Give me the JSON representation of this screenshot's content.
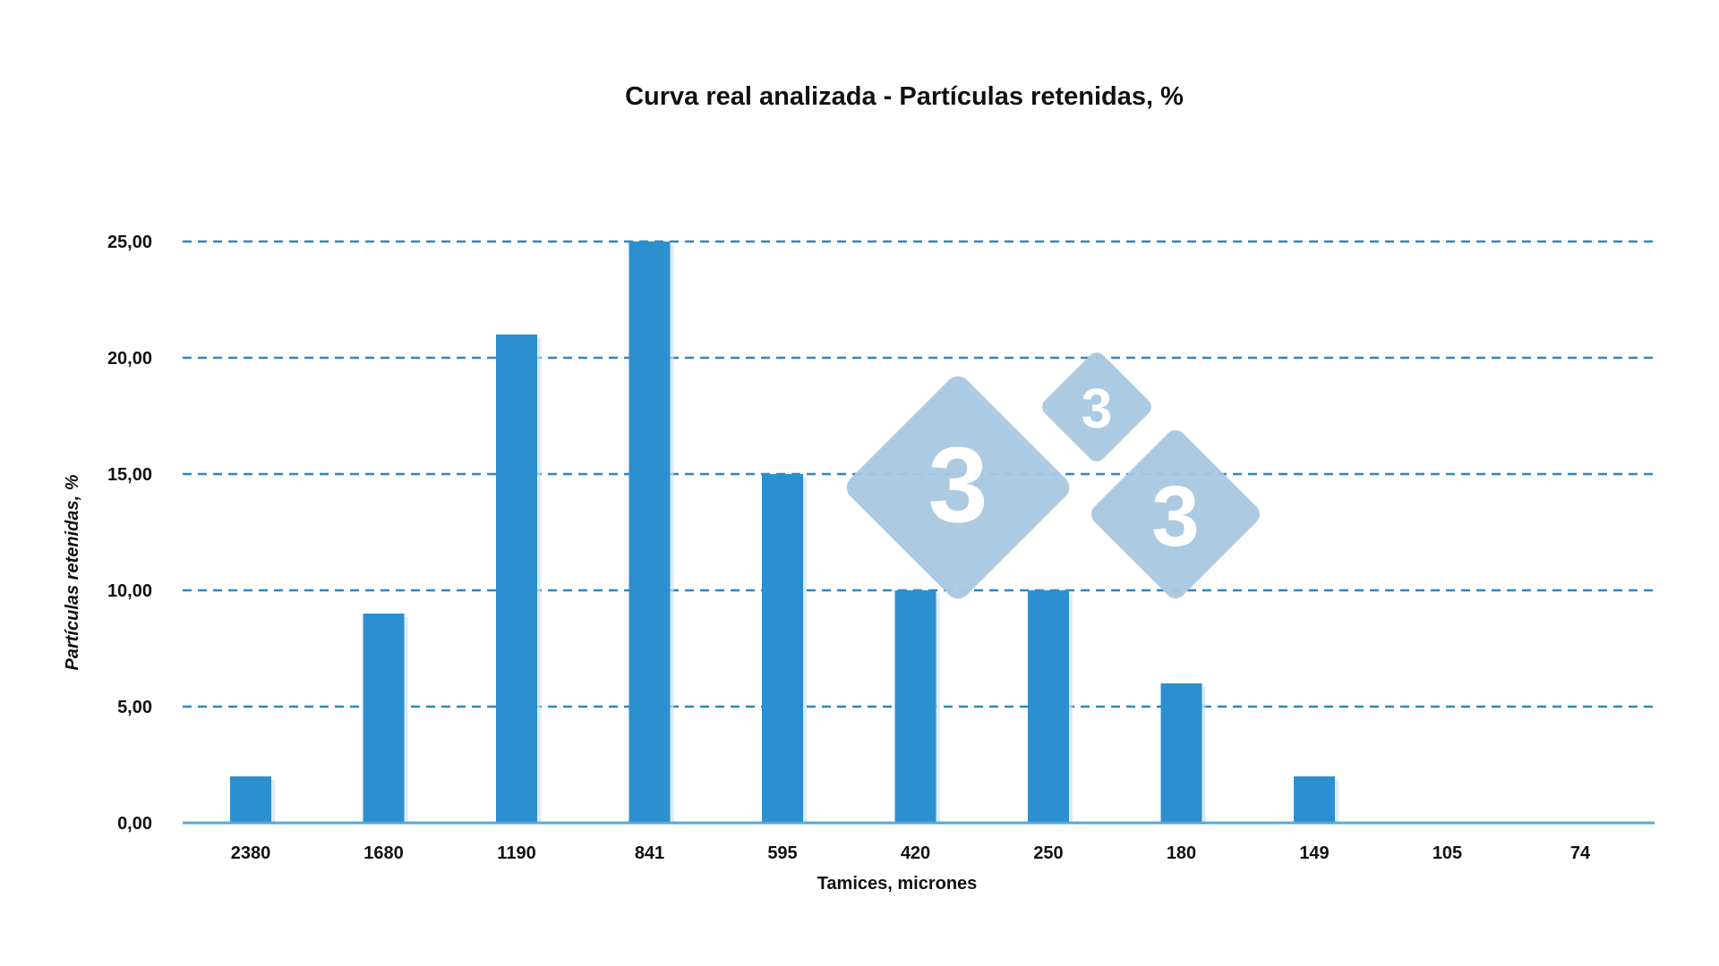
{
  "chart_data": {
    "type": "bar",
    "title": "Curva real analizada - Partículas retenidas, %",
    "xlabel": "Tamices, micrones",
    "ylabel": "Partículas retenidas, %",
    "categories": [
      "2380",
      "1680",
      "1190",
      "841",
      "595",
      "420",
      "250",
      "180",
      "149",
      "105",
      "74"
    ],
    "values": [
      2.0,
      9.0,
      21.0,
      25.0,
      15.0,
      10.0,
      10.0,
      6.0,
      2.0,
      0.0,
      0.0
    ],
    "ylim": [
      0,
      25
    ],
    "yticks": [
      0,
      5,
      10,
      15,
      20,
      25
    ],
    "ytick_labels": [
      "0,00",
      "5,00",
      "10,00",
      "15,00",
      "20,00",
      "25,00"
    ],
    "grid": true,
    "grid_style": "dashed",
    "legend": "none",
    "colors": {
      "bar": "#2b8fd0",
      "grid": "#2e86c1",
      "axis": "#5aa7d6",
      "watermark": "#a9c8e2"
    }
  },
  "watermark": {
    "text": "3",
    "name": "333-logo"
  }
}
